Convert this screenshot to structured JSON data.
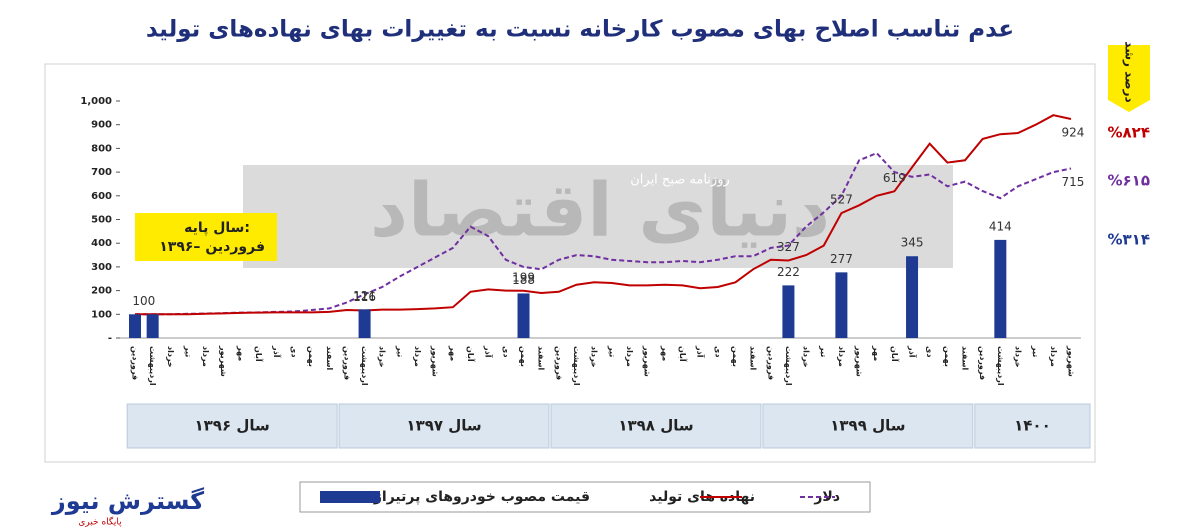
{
  "chart_data": {
    "type": "combo",
    "title": "عدم تناسب اصلاح بهای مصوب کارخانه نسبت به تغییرات بهای نهاده‌های تولید",
    "categories": [
      "فروردین",
      "اردیبهشت",
      "خرداد",
      "تیر",
      "مرداد",
      "شهریور",
      "مهر",
      "آبان",
      "آذر",
      "دی",
      "بهمن",
      "اسفند",
      "فروردین",
      "اردیبهشت",
      "خرداد",
      "تیر",
      "مرداد",
      "شهریور",
      "مهر",
      "آبان",
      "آذر",
      "دی",
      "بهمن",
      "اسفند",
      "فروردین",
      "اردیبهشت",
      "خرداد",
      "تیر",
      "مرداد",
      "شهریور",
      "مهر",
      "آبان",
      "آذر",
      "دی",
      "بهمن",
      "اسفند",
      "فروردین",
      "اردیبهشت",
      "خرداد",
      "تیر",
      "مرداد",
      "شهریور",
      "مهر",
      "آبان",
      "آذر",
      "دی",
      "بهمن",
      "اسفند",
      "فروردین",
      "اردیبهشت",
      "خرداد",
      "تیر",
      "مرداد",
      "شهریور"
    ],
    "years": [
      "سال ۱۳۹۶",
      "سال ۱۳۹۷",
      "سال ۱۳۹۸",
      "سال ۱۳۹۹",
      "۱۴۰۰"
    ],
    "ylim": [
      0,
      1000
    ],
    "yticks": [
      {
        "value": 0,
        "label": "-"
      },
      100,
      200,
      300,
      400,
      500,
      600,
      700,
      800,
      900,
      {
        "value": 1000,
        "label": "1,000"
      }
    ],
    "grid": false,
    "base_label": [
      "سال پایه:",
      "۱۳۹۶– فروردین"
    ],
    "growth_title": "درصد رشد",
    "watermark": [
      "دنیای اقتصاد",
      "روزنامه صبح ایران"
    ],
    "series": [
      {
        "name": "دلار",
        "type": "line",
        "dash": true,
        "color": "#7030a0",
        "growth_label": {
          "value": 615,
          "label": "%۶۱۵"
        },
        "values": [
          100,
          100,
          100,
          102,
          103,
          105,
          107,
          108,
          110,
          112,
          118,
          125,
          150,
          185,
          215,
          260,
          300,
          340,
          380,
          470,
          430,
          330,
          300,
          290,
          330,
          350,
          345,
          330,
          325,
          320,
          320,
          325,
          320,
          330,
          345,
          345,
          380,
          390,
          470,
          530,
          600,
          750,
          780,
          700,
          680,
          690,
          640,
          660,
          620,
          590,
          640,
          670,
          700,
          715
        ],
        "value_labels": [
          null,
          null,
          null,
          null,
          null,
          null,
          null,
          null,
          null,
          null,
          null,
          null,
          null,
          null,
          null,
          null,
          null,
          null,
          null,
          null,
          null,
          null,
          null,
          null,
          null,
          null,
          null,
          null,
          null,
          null,
          null,
          null,
          null,
          null,
          null,
          null,
          null,
          null,
          null,
          null,
          null,
          null,
          null,
          null,
          null,
          null,
          null,
          null,
          null,
          null,
          null,
          null,
          null,
          "715"
        ]
      },
      {
        "name": "نهاده های تولید",
        "type": "line",
        "dash": false,
        "color": "#c00000",
        "growth_label": {
          "value": 824,
          "label": "%۸۲۴"
        },
        "values": [
          100,
          100,
          100,
          100,
          102,
          104,
          106,
          107,
          108,
          108,
          108,
          110,
          118,
          116,
          120,
          120,
          122,
          125,
          130,
          195,
          205,
          200,
          199,
          190,
          195,
          225,
          235,
          232,
          222,
          222,
          225,
          222,
          210,
          215,
          235,
          290,
          330,
          327,
          350,
          390,
          527,
          560,
          600,
          619,
          720,
          820,
          740,
          750,
          840,
          860,
          865,
          900,
          940,
          924
        ],
        "value_labels": [
          null,
          null,
          null,
          null,
          null,
          null,
          null,
          null,
          null,
          null,
          null,
          null,
          null,
          "116",
          null,
          null,
          null,
          null,
          null,
          null,
          null,
          null,
          "199",
          null,
          null,
          null,
          null,
          null,
          null,
          null,
          null,
          null,
          null,
          null,
          null,
          null,
          null,
          "327",
          null,
          null,
          "527",
          null,
          null,
          "619",
          null,
          null,
          null,
          null,
          null,
          null,
          null,
          null,
          null,
          "924"
        ]
      },
      {
        "name": "قیمت مصوب خودروهای پرتیراژ",
        "type": "bar",
        "color": "#1f3a93",
        "growth_label": {
          "value": 314,
          "label": "%۳۱۴"
        },
        "values": [
          100,
          100,
          null,
          null,
          null,
          null,
          null,
          null,
          null,
          null,
          null,
          null,
          null,
          121,
          null,
          null,
          null,
          null,
          null,
          null,
          null,
          null,
          188,
          null,
          null,
          null,
          null,
          null,
          null,
          null,
          null,
          null,
          null,
          null,
          null,
          null,
          null,
          222,
          null,
          null,
          277,
          null,
          null,
          null,
          345,
          null,
          null,
          null,
          null,
          414,
          null,
          null,
          null,
          null
        ],
        "value_labels": [
          "100",
          null,
          null,
          null,
          null,
          null,
          null,
          null,
          null,
          null,
          null,
          null,
          null,
          "121",
          null,
          null,
          null,
          null,
          null,
          null,
          null,
          null,
          "188",
          null,
          null,
          null,
          null,
          null,
          null,
          null,
          null,
          null,
          null,
          null,
          null,
          null,
          null,
          "222",
          null,
          null,
          "277",
          null,
          null,
          null,
          "345",
          null,
          null,
          null,
          null,
          "414",
          null,
          null,
          null,
          null
        ]
      }
    ]
  },
  "source": [
    "گسترش نیوز",
    "پایگاه خبری"
  ]
}
